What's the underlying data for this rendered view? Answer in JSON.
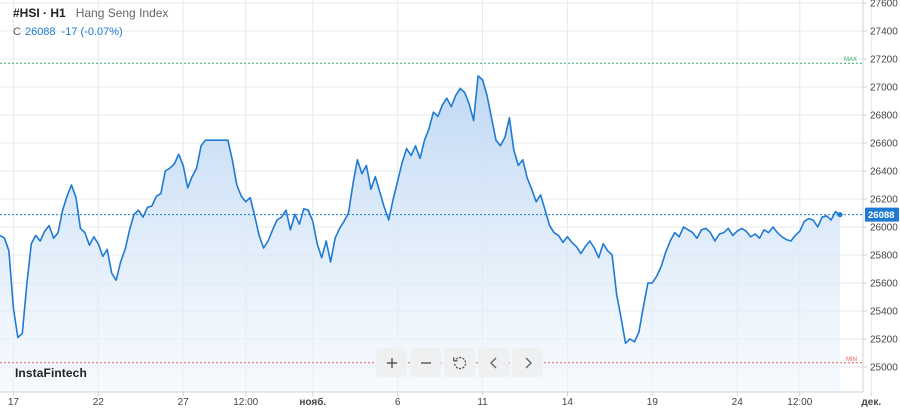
{
  "header": {
    "symbol": "#HSI · H1",
    "name": "Hang Seng Index"
  },
  "quote": {
    "label": "C",
    "price": "26088",
    "change": "-17 (-0.07%)"
  },
  "brand": {
    "logo_text": "InstaFintech"
  },
  "toolbar": [
    {
      "name": "zoom-in-button",
      "icon": "plus-icon"
    },
    {
      "name": "zoom-out-button",
      "icon": "minus-icon"
    },
    {
      "name": "reset-button",
      "icon": "reset-icon"
    },
    {
      "name": "scroll-left-button",
      "icon": "chevron-left-icon"
    },
    {
      "name": "scroll-right-button",
      "icon": "chevron-right-icon"
    }
  ],
  "colors": {
    "line": "#1f7ad3",
    "fill_top": "#bcd6f3",
    "fill_bottom": "#f1f7fd",
    "max_line": "#2eaf6c",
    "min_line": "#e35d5d",
    "grid": "#e6e9ee",
    "current_price_line": "#1f7ad3"
  },
  "chart_data": {
    "type": "area",
    "ylim": [
      25000,
      27600
    ],
    "y_ticks": [
      25000,
      25200,
      25400,
      25600,
      25800,
      26000,
      26200,
      26400,
      26600,
      26800,
      27000,
      27200,
      27400,
      27600
    ],
    "x_tick_labels": [
      {
        "label": "17",
        "i": 3
      },
      {
        "label": "22",
        "i": 22
      },
      {
        "label": "27",
        "i": 41
      },
      {
        "label": "12:00",
        "i": 55
      },
      {
        "label": "нояб.",
        "i": 70
      },
      {
        "label": "6",
        "i": 89
      },
      {
        "label": "11",
        "i": 108
      },
      {
        "label": "14",
        "i": 127
      },
      {
        "label": "19",
        "i": 146
      },
      {
        "label": "24",
        "i": 165
      },
      {
        "label": "12:00",
        "i": 179
      },
      {
        "label": "дек.",
        "i": 195
      }
    ],
    "max_label": "MAX",
    "max_value": 27170,
    "min_label": "MIN",
    "min_value": 25030,
    "current_value": 26088,
    "current_label": "26088",
    "values": [
      25940,
      25920,
      25830,
      25420,
      25210,
      25240,
      25590,
      25880,
      25940,
      25900,
      25970,
      26010,
      25920,
      25960,
      26120,
      26220,
      26300,
      26210,
      25990,
      25960,
      25870,
      25930,
      25880,
      25790,
      25840,
      25670,
      25620,
      25750,
      25840,
      25980,
      26090,
      26120,
      26070,
      26140,
      26150,
      26220,
      26240,
      26400,
      26420,
      26450,
      26520,
      26440,
      26280,
      26360,
      26420,
      26580,
      26620,
      26620,
      26620,
      26620,
      26620,
      26620,
      26480,
      26300,
      26220,
      26180,
      26210,
      26080,
      25940,
      25850,
      25900,
      25980,
      26050,
      26070,
      26120,
      25980,
      26090,
      26020,
      26130,
      26120,
      26040,
      25880,
      25780,
      25900,
      25750,
      25920,
      25990,
      26040,
      26100,
      26310,
      26480,
      26380,
      26440,
      26270,
      26360,
      26250,
      26140,
      26050,
      26200,
      26330,
      26460,
      26560,
      26510,
      26580,
      26490,
      26620,
      26700,
      26820,
      26790,
      26870,
      26920,
      26860,
      26940,
      26990,
      26960,
      26880,
      26760,
      27080,
      27050,
      26940,
      26780,
      26620,
      26580,
      26640,
      26780,
      26550,
      26440,
      26480,
      26350,
      26270,
      26180,
      26230,
      26120,
      26010,
      25960,
      25940,
      25890,
      25930,
      25890,
      25860,
      25810,
      25860,
      25900,
      25850,
      25780,
      25880,
      25830,
      25800,
      25520,
      25350,
      25170,
      25200,
      25180,
      25250,
      25430,
      25600,
      25600,
      25650,
      25720,
      25820,
      25900,
      25960,
      25930,
      26000,
      25980,
      25960,
      25920,
      25980,
      25990,
      25960,
      25900,
      25950,
      25960,
      25990,
      25940,
      25970,
      25990,
      25970,
      25930,
      25950,
      25920,
      25980,
      25960,
      26000,
      25960,
      25930,
      25910,
      25900,
      25940,
      25970,
      26040,
      26060,
      26050,
      26000,
      26070,
      26080,
      26050,
      26110,
      26088
    ]
  }
}
